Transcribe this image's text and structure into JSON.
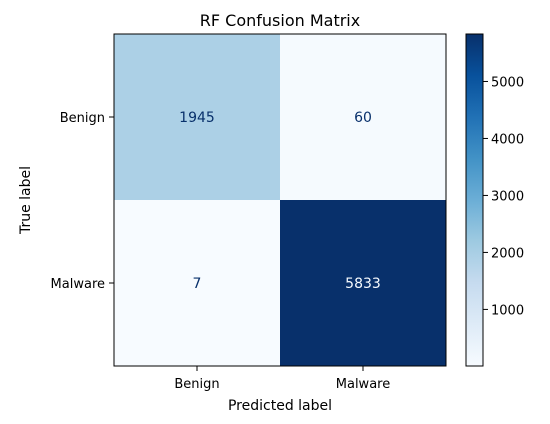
{
  "chart_data": {
    "type": "heatmap",
    "title": "RF Confusion Matrix",
    "xlabel": "Predicted label",
    "ylabel": "True label",
    "x_categories": [
      "Benign",
      "Malware"
    ],
    "y_categories": [
      "Benign",
      "Malware"
    ],
    "values": [
      [
        1945,
        60
      ],
      [
        7,
        5833
      ]
    ],
    "colormap": "Blues",
    "colorbar": {
      "ticks": [
        1000,
        2000,
        3000,
        4000,
        5000
      ],
      "tick_labels": [
        "1000",
        "2000",
        "3000",
        "4000",
        "5000"
      ],
      "range": [
        7,
        5833
      ]
    },
    "text_colors": {
      "on_light": "#08306b",
      "on_dark": "#f7fbff"
    }
  }
}
